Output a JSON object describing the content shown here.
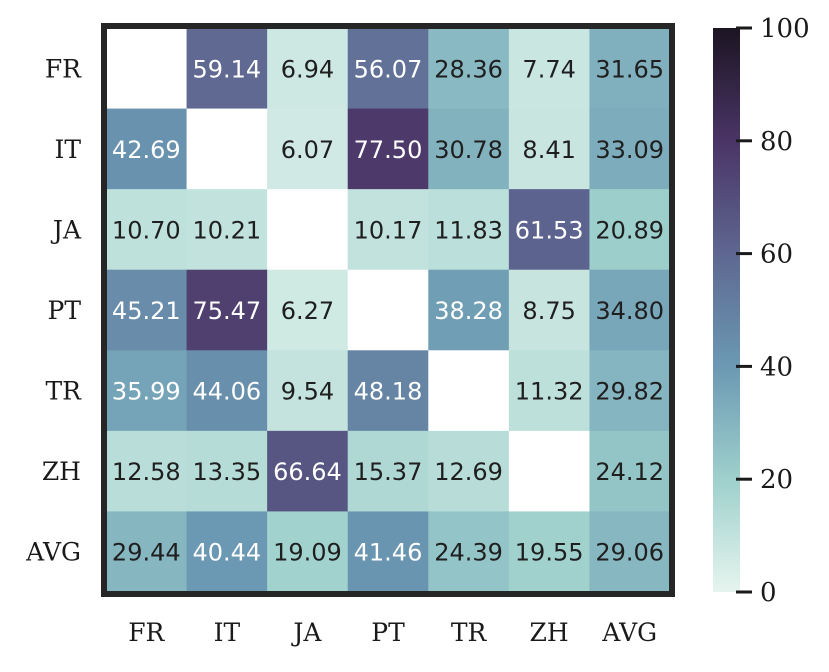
{
  "chart_data": {
    "type": "heatmap",
    "title": "",
    "xlabel": "",
    "ylabel": "",
    "x_categories": [
      "FR",
      "IT",
      "JA",
      "PT",
      "TR",
      "ZH",
      "AVG"
    ],
    "y_categories": [
      "FR",
      "IT",
      "JA",
      "PT",
      "TR",
      "ZH",
      "AVG"
    ],
    "values": [
      [
        null,
        59.14,
        6.94,
        56.07,
        28.36,
        7.74,
        31.65
      ],
      [
        42.69,
        null,
        6.07,
        77.5,
        30.78,
        8.41,
        33.09
      ],
      [
        10.7,
        10.21,
        null,
        10.17,
        11.83,
        61.53,
        20.89
      ],
      [
        45.21,
        75.47,
        6.27,
        null,
        38.28,
        8.75,
        34.8
      ],
      [
        35.99,
        44.06,
        9.54,
        48.18,
        null,
        11.32,
        29.82
      ],
      [
        12.58,
        13.35,
        66.64,
        15.37,
        12.69,
        null,
        24.12
      ],
      [
        29.44,
        40.44,
        19.09,
        41.46,
        24.39,
        19.55,
        29.06
      ]
    ],
    "value_labels": [
      [
        "",
        "59.14",
        "6.94",
        "56.07",
        "28.36",
        "7.74",
        "31.65"
      ],
      [
        "42.69",
        "",
        "6.07",
        "77.50",
        "30.78",
        "8.41",
        "33.09"
      ],
      [
        "10.70",
        "10.21",
        "",
        "10.17",
        "11.83",
        "61.53",
        "20.89"
      ],
      [
        "45.21",
        "75.47",
        "6.27",
        "",
        "38.28",
        "8.75",
        "34.80"
      ],
      [
        "35.99",
        "44.06",
        "9.54",
        "48.18",
        "",
        "11.32",
        "29.82"
      ],
      [
        "12.58",
        "13.35",
        "66.64",
        "15.37",
        "12.69",
        "",
        "24.12"
      ],
      [
        "29.44",
        "40.44",
        "19.09",
        "41.46",
        "24.39",
        "19.55",
        "29.06"
      ]
    ],
    "colorbar": {
      "range": [
        0,
        100
      ],
      "ticks": [
        "0",
        "20",
        "40",
        "60",
        "80",
        "100"
      ],
      "colors": [
        "#e6f4ee",
        "#9ed0cc",
        "#6b99b3",
        "#5e6791",
        "#4a3466",
        "#1c1522"
      ]
    },
    "text_colors": {
      "dark": "#1f1f1f",
      "light": "#ffffff"
    },
    "missing_color": "#ffffff",
    "frame_color": "#262626"
  }
}
